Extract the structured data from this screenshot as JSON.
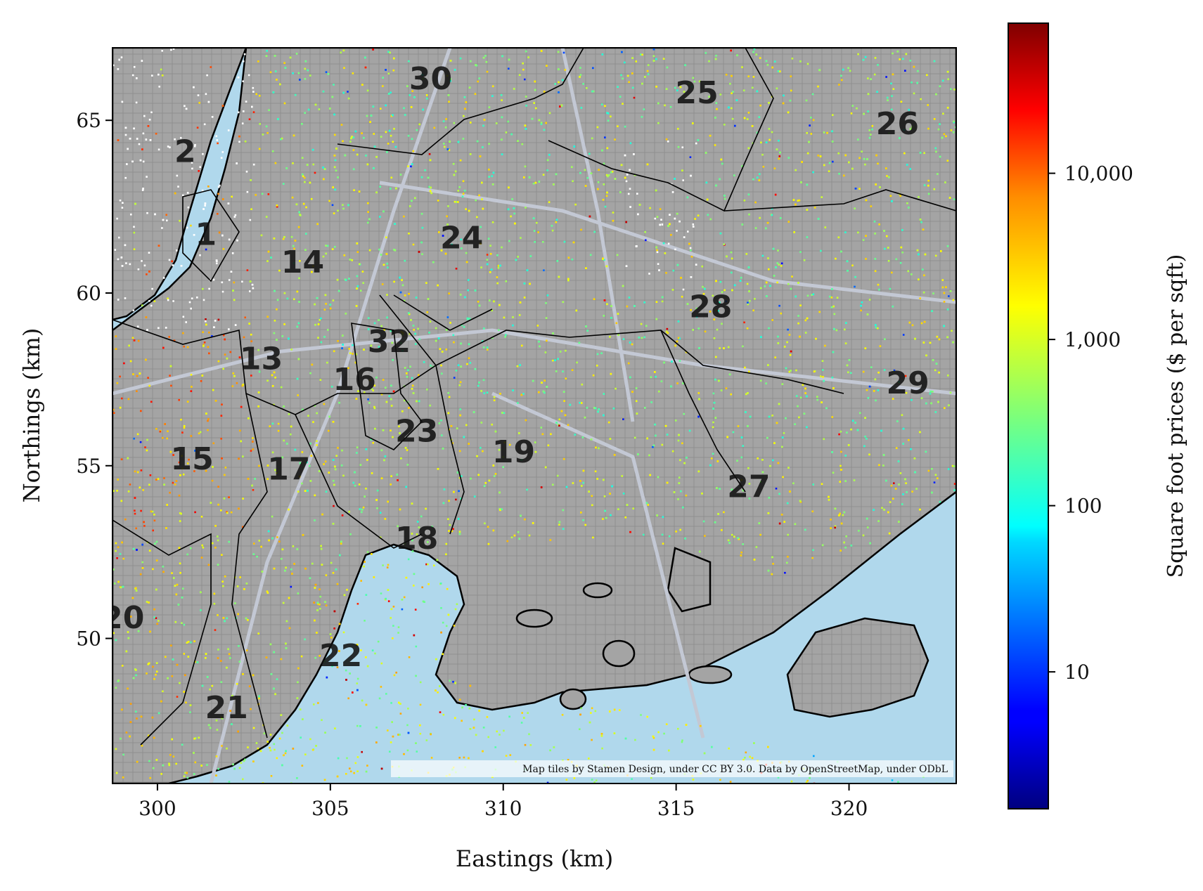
{
  "map": {
    "x_axis": {
      "label": "Eastings (km)",
      "range": [
        298.7,
        323.1
      ],
      "ticks": [
        {
          "v": 300,
          "label": "300"
        },
        {
          "v": 305,
          "label": "305"
        },
        {
          "v": 310,
          "label": "310"
        },
        {
          "v": 315,
          "label": "315"
        },
        {
          "v": 320,
          "label": "320"
        }
      ]
    },
    "y_axis": {
      "label": "Northings (km)",
      "range": [
        45.8,
        67.1
      ],
      "ticks": [
        {
          "v": 50,
          "label": "50"
        },
        {
          "v": 55,
          "label": "55"
        },
        {
          "v": 60,
          "label": "60"
        },
        {
          "v": 65,
          "label": "65"
        }
      ]
    },
    "attribution": "Map tiles by Stamen Design, under CC BY 3.0. Data by OpenStreetMap, under ODbL",
    "colors": {
      "water": "#b0d8ec",
      "land": "#a4a4a4",
      "roads": "#c3c8d4",
      "boundary": "#000000",
      "unpriced_marker": "#ffffff"
    },
    "districts": [
      {
        "label": "1",
        "x": 301.4,
        "y": 61.7
      },
      {
        "label": "2",
        "x": 300.8,
        "y": 64.1
      },
      {
        "label": "13",
        "x": 303.0,
        "y": 58.1
      },
      {
        "label": "14",
        "x": 304.2,
        "y": 60.9
      },
      {
        "label": "15",
        "x": 301.0,
        "y": 55.2
      },
      {
        "label": "16",
        "x": 305.7,
        "y": 57.5
      },
      {
        "label": "17",
        "x": 303.8,
        "y": 54.9
      },
      {
        "label": "18",
        "x": 307.5,
        "y": 52.9
      },
      {
        "label": "19",
        "x": 310.3,
        "y": 55.4
      },
      {
        "label": "20",
        "x": 299.0,
        "y": 50.6
      },
      {
        "label": "21",
        "x": 302.0,
        "y": 48.0
      },
      {
        "label": "22",
        "x": 305.3,
        "y": 49.5
      },
      {
        "label": "23",
        "x": 307.5,
        "y": 56.0
      },
      {
        "label": "24",
        "x": 308.8,
        "y": 61.6
      },
      {
        "label": "25",
        "x": 315.6,
        "y": 65.8
      },
      {
        "label": "26",
        "x": 321.4,
        "y": 64.9
      },
      {
        "label": "27",
        "x": 317.1,
        "y": 54.4
      },
      {
        "label": "28",
        "x": 316.0,
        "y": 59.6
      },
      {
        "label": "29",
        "x": 321.7,
        "y": 57.4
      },
      {
        "label": "30",
        "x": 307.9,
        "y": 66.2
      },
      {
        "label": "32",
        "x": 306.7,
        "y": 58.6
      }
    ]
  },
  "colorbar": {
    "label": "Square foot prices ($ per sqft)",
    "scale": "log",
    "range": [
      1.5,
      80000
    ],
    "colormap": "jet",
    "ticks": [
      {
        "v": 10,
        "label": "10"
      },
      {
        "v": 100,
        "label": "100"
      },
      {
        "v": 1000,
        "label": "1,000"
      },
      {
        "v": 10000,
        "label": "10,000"
      }
    ]
  }
}
